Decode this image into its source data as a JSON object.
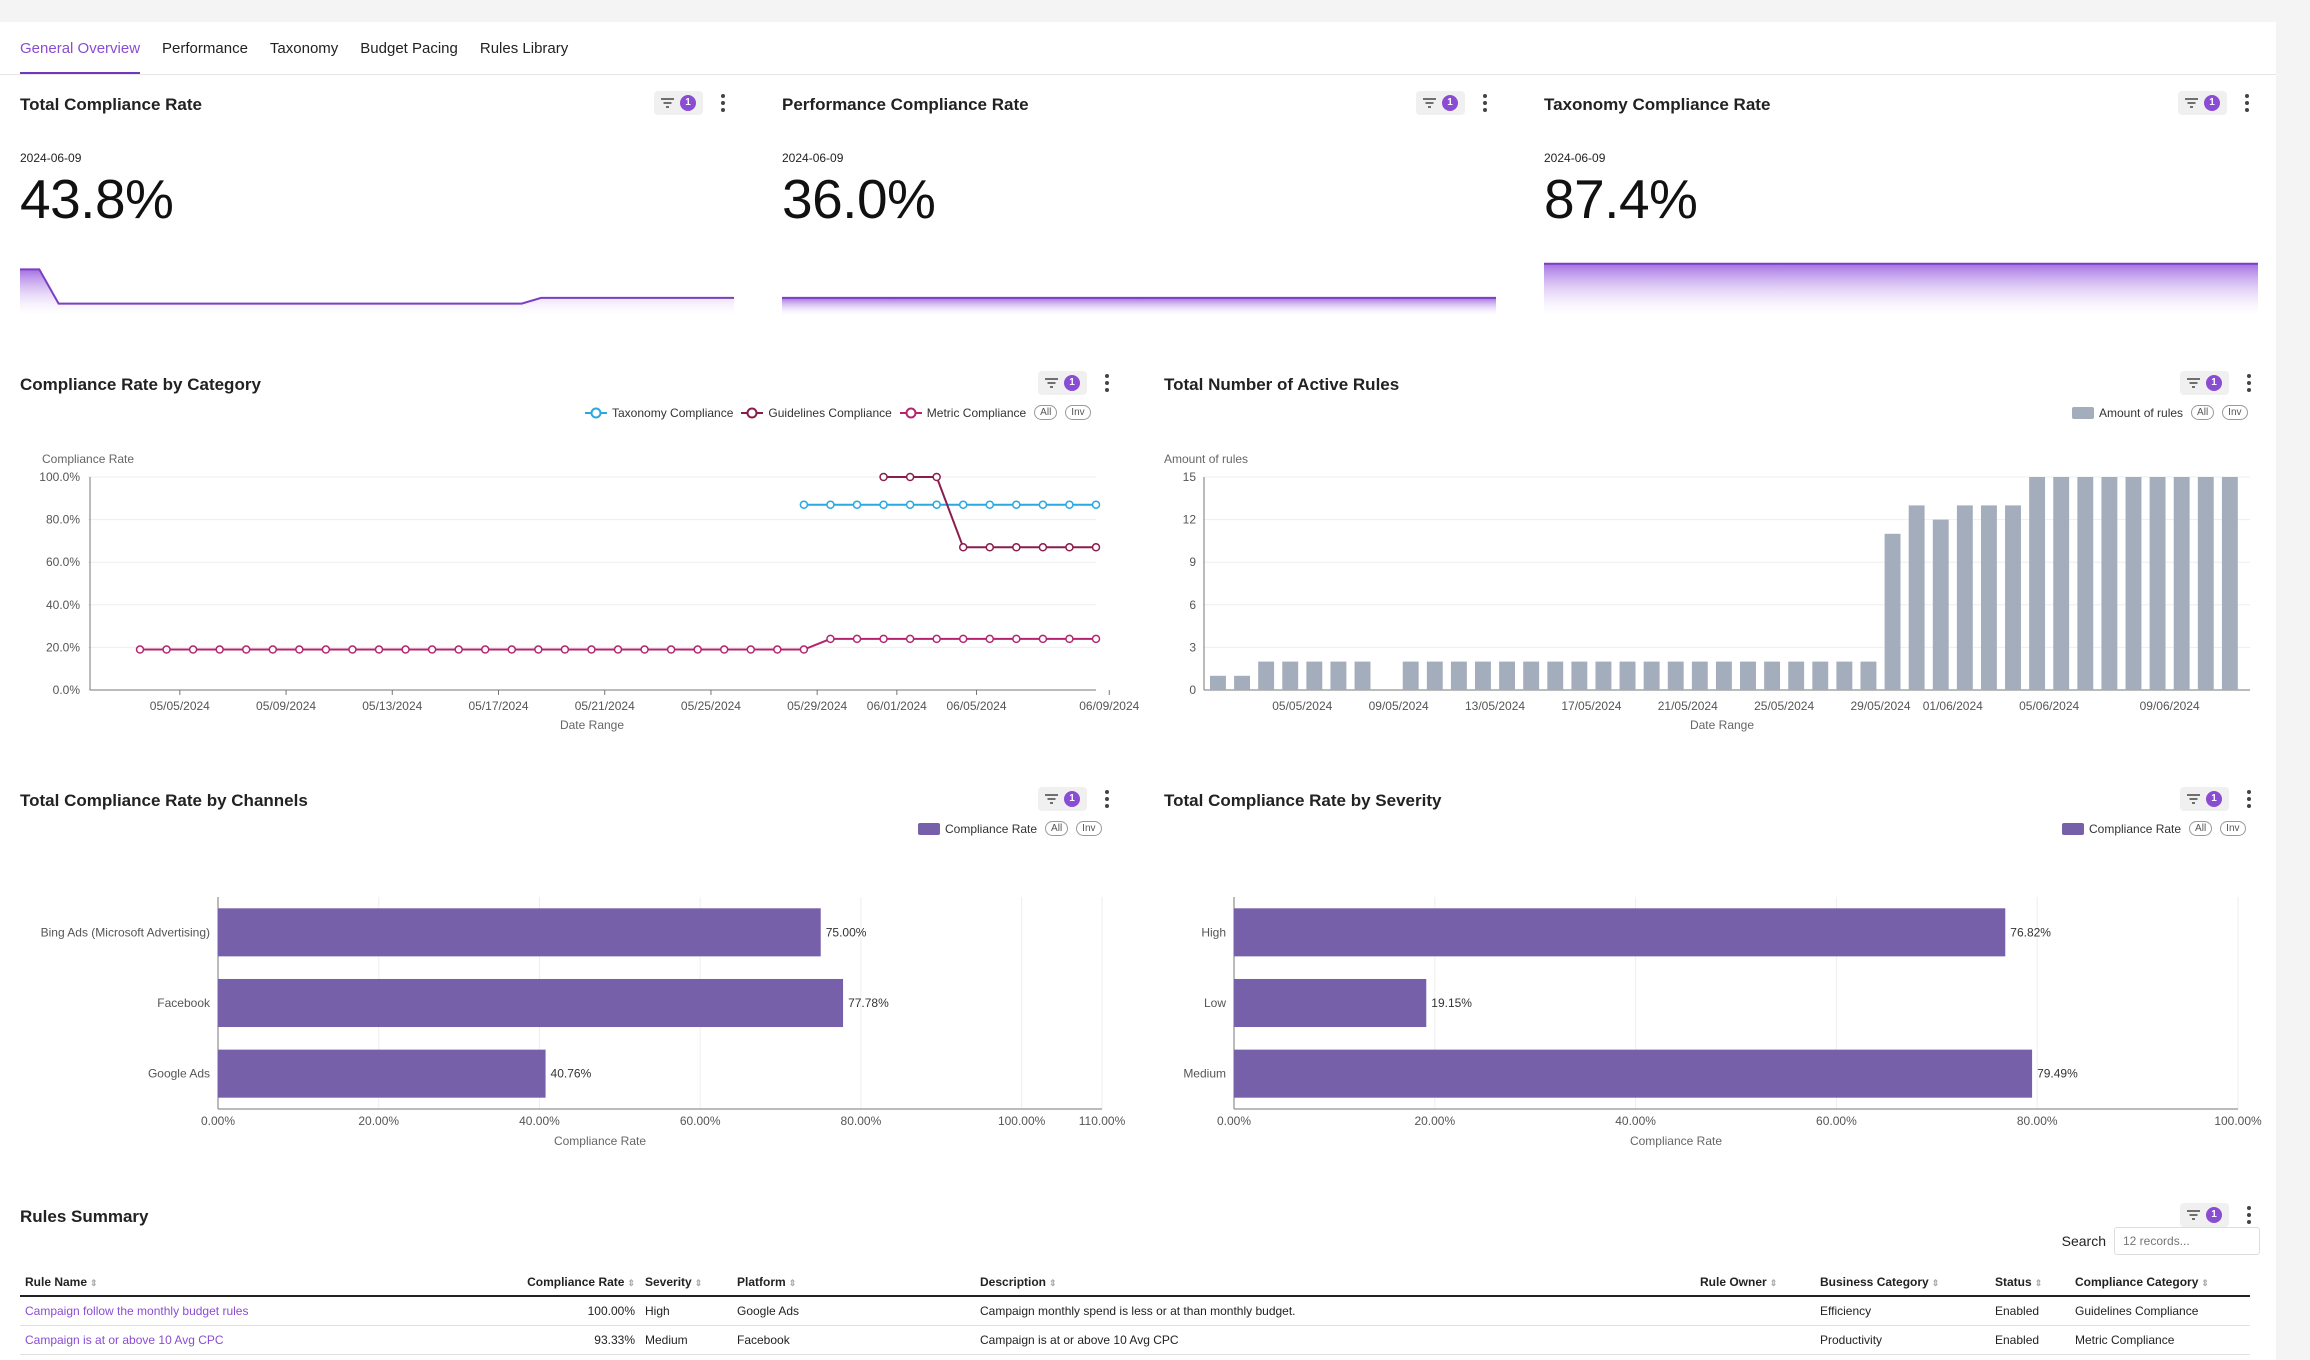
{
  "tabs": [
    "General Overview",
    "Performance",
    "Taxonomy",
    "Budget Pacing",
    "Rules Library"
  ],
  "active_tab": 0,
  "filter_badge": "1",
  "kpis": [
    {
      "title": "Total Compliance Rate",
      "date": "2024-06-09",
      "value": "43.8%"
    },
    {
      "title": "Performance Compliance Rate",
      "date": "2024-06-09",
      "value": "36.0%"
    },
    {
      "title": "Taxonomy Compliance Rate",
      "date": "2024-06-09",
      "value": "87.4%"
    }
  ],
  "colors": {
    "accent": "#8a4cd3",
    "bar_purple": "#7660a9",
    "bar_gray": "#a3adbb",
    "taxonomy": "#29a9e0",
    "guidelines": "#8a1d4e",
    "metric": "#b4246e"
  },
  "chart_data": [
    {
      "title": "Compliance Rate by Category",
      "type": "line",
      "ylabel": "Compliance Rate",
      "xlabel": "Date Range",
      "ylim": [
        0,
        100
      ],
      "yticks": [
        "0.0%",
        "20.0%",
        "40.0%",
        "60.0%",
        "80.0%",
        "100.0%"
      ],
      "xticks": [
        "05/05/2024",
        "05/09/2024",
        "05/13/2024",
        "05/17/2024",
        "05/21/2024",
        "05/25/2024",
        "05/29/2024",
        "06/01/2024",
        "06/05/2024",
        "06/09/2024"
      ],
      "legend": [
        "Taxonomy Compliance",
        "Guidelines Compliance",
        "Metric Compliance"
      ],
      "chips": [
        "All",
        "Inv"
      ],
      "series": [
        {
          "name": "Taxonomy Compliance",
          "x": [
            26,
            27,
            28,
            29,
            30,
            31,
            32,
            33,
            34,
            35,
            36,
            37
          ],
          "values": [
            87,
            87,
            87,
            87,
            87,
            87,
            87,
            87,
            87,
            87,
            87,
            87
          ]
        },
        {
          "name": "Guidelines Compliance",
          "x": [
            29,
            30,
            31,
            32,
            33,
            34,
            35,
            36,
            37
          ],
          "values": [
            100,
            100,
            100,
            67,
            67,
            67,
            67,
            67,
            67
          ]
        },
        {
          "name": "Metric Compliance",
          "x": [
            1,
            2,
            3,
            4,
            5,
            6,
            7,
            8,
            9,
            10,
            11,
            12,
            13,
            14,
            15,
            16,
            17,
            18,
            19,
            20,
            21,
            22,
            23,
            24,
            25,
            26,
            27,
            28,
            29,
            30,
            31,
            32,
            33,
            34,
            35,
            36,
            37
          ],
          "values": [
            19,
            19,
            19,
            19,
            19,
            19,
            19,
            19,
            19,
            19,
            19,
            19,
            19,
            19,
            19,
            19,
            19,
            19,
            19,
            19,
            19,
            19,
            19,
            19,
            19,
            19,
            24,
            24,
            24,
            24,
            24,
            24,
            24,
            24,
            24,
            24,
            24
          ]
        }
      ]
    },
    {
      "title": "Total Number of Active Rules",
      "type": "bar",
      "ylabel": "Amount of rules",
      "xlabel": "Date Range",
      "ylim": [
        0,
        15
      ],
      "yticks": [
        "0",
        "3",
        "6",
        "9",
        "12",
        "15"
      ],
      "xticks": [
        "05/05/2024",
        "09/05/2024",
        "13/05/2024",
        "17/05/2024",
        "21/05/2024",
        "25/05/2024",
        "29/05/2024",
        "01/06/2024",
        "05/06/2024",
        "09/06/2024"
      ],
      "legend": [
        "Amount of rules"
      ],
      "chips": [
        "All",
        "Inv"
      ],
      "values": [
        1,
        1,
        2,
        2,
        2,
        2,
        2,
        0,
        2,
        2,
        2,
        2,
        2,
        2,
        2,
        2,
        2,
        2,
        2,
        2,
        2,
        2,
        2,
        2,
        2,
        2,
        2,
        2,
        11,
        13,
        12,
        13,
        13,
        13,
        15,
        15,
        15,
        15,
        15,
        15,
        15,
        15,
        15
      ]
    },
    {
      "title": "Total Compliance Rate by Channels",
      "type": "bar",
      "orientation": "horizontal",
      "xlabel": "Compliance Rate",
      "xlim": [
        0,
        110
      ],
      "xticks": [
        "0.00%",
        "20.00%",
        "40.00%",
        "60.00%",
        "80.00%",
        "100.00%",
        "110.00%"
      ],
      "legend": [
        "Compliance Rate"
      ],
      "chips": [
        "All",
        "Inv"
      ],
      "categories": [
        "Bing Ads (Microsoft Advertising)",
        "Facebook",
        "Google Ads"
      ],
      "values": [
        75.0,
        77.78,
        40.76
      ],
      "labels": [
        "75.00%",
        "77.78%",
        "40.76%"
      ]
    },
    {
      "title": "Total Compliance Rate by Severity",
      "type": "bar",
      "orientation": "horizontal",
      "xlabel": "Compliance Rate",
      "xlim": [
        0,
        100
      ],
      "xticks": [
        "0.00%",
        "20.00%",
        "40.00%",
        "60.00%",
        "80.00%",
        "100.00%"
      ],
      "legend": [
        "Compliance Rate"
      ],
      "chips": [
        "All",
        "Inv"
      ],
      "categories": [
        "High",
        "Low",
        "Medium"
      ],
      "values": [
        76.82,
        19.15,
        79.49
      ],
      "labels": [
        "76.82%",
        "19.15%",
        "79.49%"
      ]
    }
  ],
  "spark_data": [
    [
      80,
      80,
      20,
      20,
      20,
      20,
      20,
      20,
      20,
      20,
      20,
      20,
      20,
      20,
      20,
      20,
      20,
      20,
      20,
      20,
      20,
      20,
      20,
      20,
      20,
      20,
      20,
      30,
      30,
      30,
      30,
      30,
      30,
      30,
      30,
      30,
      30,
      30
    ],
    [
      30,
      30,
      30,
      30,
      30,
      30,
      30,
      30,
      30,
      30,
      30,
      30,
      30,
      30,
      30,
      30,
      30,
      30,
      30,
      30,
      30,
      30,
      30,
      30,
      30,
      30,
      30,
      30,
      30,
      30,
      30,
      30,
      30,
      30,
      30,
      30,
      30,
      30
    ],
    [
      90,
      90,
      90,
      90,
      90,
      90,
      90,
      90,
      90,
      90,
      90,
      90,
      90,
      90,
      90,
      90,
      90,
      90,
      90,
      90,
      90,
      90,
      90,
      90,
      90,
      90,
      90,
      90,
      90,
      90,
      90,
      90,
      90,
      90,
      90,
      90,
      90,
      90
    ]
  ],
  "rules_summary": {
    "title": "Rules Summary",
    "search_label": "Search",
    "search_placeholder": "12 records...",
    "columns": [
      "Rule Name",
      "Compliance Rate",
      "Severity",
      "Platform",
      "Description",
      "Rule Owner",
      "Business Category",
      "Status",
      "Compliance Category"
    ],
    "rows": [
      [
        "Campaign follow the monthly budget rules",
        "100.00%",
        "High",
        "Google Ads",
        "Campaign monthly spend is less or at than monthly budget.",
        "",
        "Efficiency",
        "Enabled",
        "Guidelines Compliance"
      ],
      [
        "Campaign is at or above 10 Avg CPC",
        "93.33%",
        "Medium",
        "Facebook",
        "Campaign is at or above 10 Avg CPC",
        "",
        "Productivity",
        "Enabled",
        "Metric Compliance"
      ]
    ]
  }
}
